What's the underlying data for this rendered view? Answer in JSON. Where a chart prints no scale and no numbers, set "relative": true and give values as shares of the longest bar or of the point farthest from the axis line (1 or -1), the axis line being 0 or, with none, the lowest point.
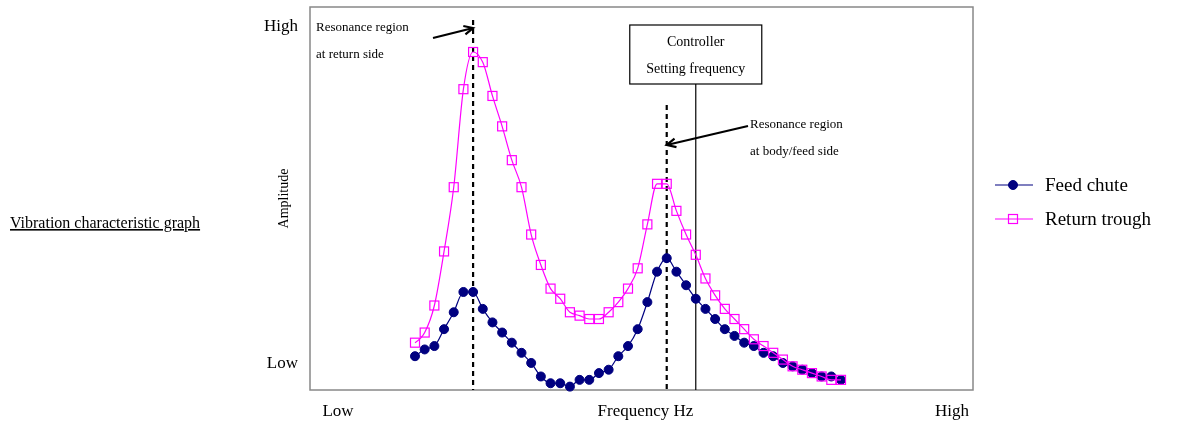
{
  "chart_data": {
    "type": "line",
    "title": "Vibration characteristic graph",
    "xlabel": "Frequency Hz",
    "relative": true,
    "categories": [
      null,
      null,
      null,
      null,
      null,
      null,
      null,
      null,
      null,
      null,
      null,
      null,
      null,
      null,
      null,
      null,
      null,
      null,
      null,
      null,
      null,
      null,
      null,
      null,
      null,
      null,
      null,
      null,
      null,
      null,
      null,
      null,
      null,
      null,
      null,
      null,
      null,
      null,
      null,
      null,
      null,
      null,
      null,
      null,
      null
    ],
    "series": [
      {
        "name": "Feed chute",
        "color": "#000080",
        "marker": "circle",
        "values": [
          0.1,
          0.12,
          0.13,
          0.18,
          0.23,
          0.29,
          0.29,
          0.24,
          0.2,
          0.17,
          0.14,
          0.11,
          0.08,
          0.04,
          0.02,
          0.02,
          0.01,
          0.03,
          0.03,
          0.05,
          0.06,
          0.1,
          0.13,
          0.18,
          0.26,
          0.35,
          0.39,
          0.35,
          0.31,
          0.27,
          0.24,
          0.21,
          0.18,
          0.16,
          0.14,
          0.13,
          0.11,
          0.1,
          0.08,
          0.07,
          0.06,
          0.05,
          0.04,
          0.04,
          0.03
        ]
      },
      {
        "name": "Return trough",
        "color": "#ff00ff",
        "marker": "square",
        "values": [
          0.14,
          0.17,
          0.25,
          0.41,
          0.6,
          0.89,
          1,
          0.97,
          0.87,
          0.78,
          0.68,
          0.6,
          0.46,
          0.37,
          0.3,
          0.27,
          0.23,
          0.22,
          0.21,
          0.21,
          0.23,
          0.26,
          0.3,
          0.36,
          0.49,
          0.61,
          0.61,
          0.53,
          0.46,
          0.4,
          0.33,
          0.28,
          0.24,
          0.21,
          0.18,
          0.15,
          0.13,
          0.11,
          0.09,
          0.07,
          0.06,
          0.05,
          0.04,
          0.03,
          0.03
        ]
      }
    ],
    "annotations": [
      "Resonance region\nat return side",
      "Controller\nSetting frequency",
      "Resonance region\nat body/feed side",
      "High",
      "Low",
      "Low",
      "High",
      "Amplitude"
    ],
    "legend": "right"
  }
}
